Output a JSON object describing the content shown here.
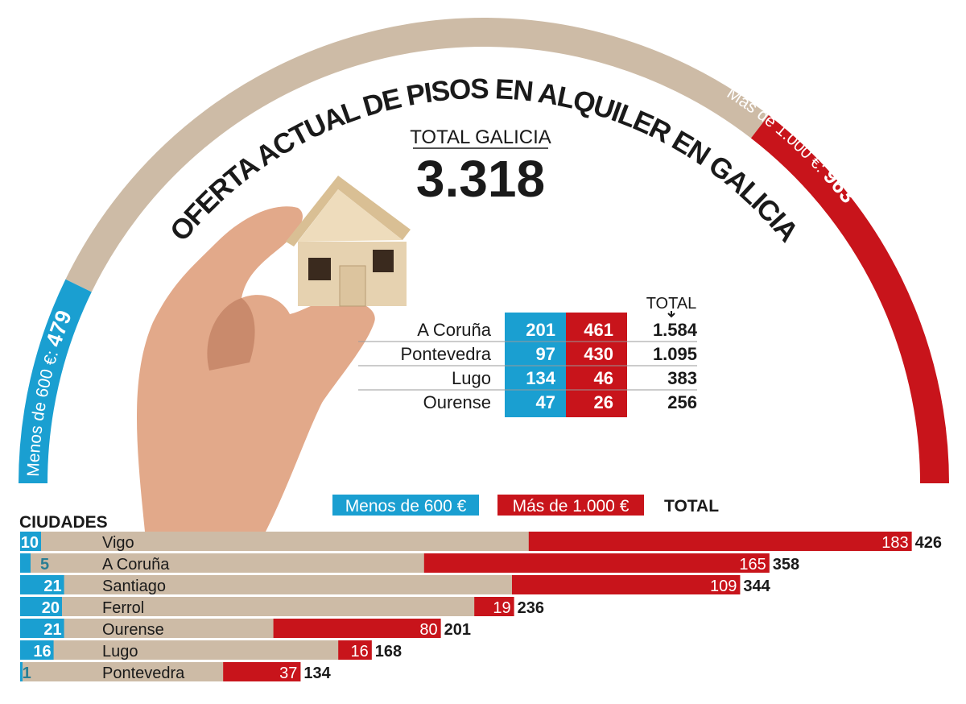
{
  "colors": {
    "blue": "#1a9fd1",
    "red": "#c8141b",
    "beige": "#cdbba6",
    "text": "#1a1a1a"
  },
  "title": "OFERTA ACTUAL DE PISOS EN ALQUILER EN GALICIA",
  "total_galicia": {
    "label": "TOTAL GALICIA",
    "value": "3.318"
  },
  "arc": {
    "total": 3318,
    "low": {
      "label": "Menos de 600 €:",
      "value": 479,
      "value_text": "479"
    },
    "high": {
      "label": "Más de 1.000 €:",
      "value": 963,
      "value_text": "963"
    }
  },
  "provinces": {
    "total_header": "TOTAL",
    "rows": [
      {
        "name": "A Coruña",
        "low": "201",
        "high": "461",
        "total": "1.584"
      },
      {
        "name": "Pontevedra",
        "low": "97",
        "high": "430",
        "total": "1.095"
      },
      {
        "name": "Lugo",
        "low": "134",
        "high": "46",
        "total": "383"
      },
      {
        "name": "Ourense",
        "low": "47",
        "high": "26",
        "total": "256"
      }
    ]
  },
  "legend": {
    "low": "Menos de 600 €",
    "high": "Más de 1.000 €",
    "total": "TOTAL"
  },
  "chart_data": {
    "type": "bar",
    "title": "CIUDADES",
    "categories": [
      "Vigo",
      "A Coruña",
      "Santiago",
      "Ferrol",
      "Ourense",
      "Lugo",
      "Pontevedra"
    ],
    "series": [
      {
        "name": "Menos de 600 €",
        "values": [
          10,
          5,
          21,
          20,
          21,
          16,
          1
        ]
      },
      {
        "name": "Más de 1.000 €",
        "values": [
          183,
          165,
          109,
          19,
          80,
          16,
          37
        ]
      },
      {
        "name": "TOTAL",
        "values": [
          426,
          358,
          344,
          236,
          201,
          168,
          134
        ]
      }
    ]
  }
}
